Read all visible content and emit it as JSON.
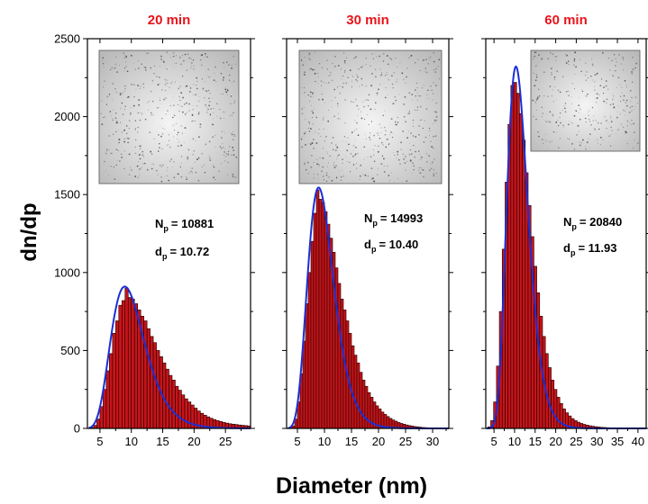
{
  "figure": {
    "ylabel": "dn/dp",
    "xlabel": "Diameter (nm)"
  },
  "colors": {
    "bar_fill": "#c8141a",
    "bar_stroke": "#1a0000",
    "fit_line": "#1c2fd6",
    "title": "#e8141b",
    "axis": "#000000"
  },
  "chart_data": [
    {
      "type": "bar",
      "title": "20 min",
      "inset_image": "TEM micrograph of particles",
      "annotation": {
        "np_label": "N",
        "np_sub": "p",
        "np_value": "= 10881",
        "dp_label": "d",
        "dp_sub": "p",
        "dp_value": "= 10.72"
      },
      "xlim": [
        3,
        29
      ],
      "ylim": [
        0,
        2500
      ],
      "xticks": [
        5,
        10,
        15,
        20,
        25
      ],
      "yticks": [
        0,
        500,
        1000,
        1500,
        2000,
        2500
      ],
      "bin_width": 0.5,
      "bins_start": 3.5,
      "values": [
        5,
        20,
        60,
        140,
        250,
        370,
        480,
        610,
        690,
        790,
        820,
        900,
        840,
        830,
        800,
        760,
        720,
        690,
        640,
        590,
        550,
        500,
        460,
        420,
        380,
        340,
        310,
        270,
        245,
        215,
        190,
        170,
        150,
        130,
        112,
        97,
        85,
        74,
        65,
        57,
        50,
        44,
        39,
        34,
        30,
        27,
        25,
        22,
        20,
        18,
        16,
        15
      ],
      "fit": {
        "mode": 9.8,
        "peak": 870,
        "sigma_log": 0.3
      }
    },
    {
      "type": "bar",
      "title": "30 min",
      "inset_image": "TEM micrograph of particles",
      "annotation": {
        "np_label": "N",
        "np_sub": "p",
        "np_value": "= 14993",
        "dp_label": "d",
        "dp_sub": "p",
        "dp_value": "= 10.40"
      },
      "xlim": [
        3,
        33
      ],
      "ylim": [
        0,
        2500
      ],
      "xticks": [
        5,
        10,
        15,
        20,
        25,
        30
      ],
      "yticks": [
        0,
        500,
        1000,
        1500,
        2000,
        2500
      ],
      "bin_width": 0.5,
      "bins_start": 3.5,
      "values": [
        3,
        15,
        60,
        170,
        350,
        560,
        800,
        1000,
        1200,
        1380,
        1530,
        1470,
        1450,
        1390,
        1310,
        1220,
        1130,
        1030,
        930,
        830,
        760,
        690,
        610,
        530,
        470,
        420,
        360,
        310,
        270,
        230,
        200,
        170,
        145,
        125,
        105,
        90,
        76,
        64,
        54,
        46,
        38,
        32,
        27,
        22,
        18,
        15,
        12,
        10,
        8,
        6,
        5,
        4,
        3,
        3,
        2,
        2,
        1,
        1,
        1,
        1
      ],
      "fit": {
        "mode": 9.6,
        "peak": 1490,
        "sigma_log": 0.27
      }
    },
    {
      "type": "bar",
      "title": "60 min",
      "inset_image": "TEM micrograph of particles",
      "annotation": {
        "np_label": "N",
        "np_sub": "p",
        "np_value": "= 20840",
        "dp_label": "d",
        "dp_sub": "p",
        "dp_value": "= 11.93"
      },
      "xlim": [
        3,
        42
      ],
      "ylim": [
        0,
        2500
      ],
      "xticks": [
        5,
        10,
        15,
        20,
        25,
        30,
        35,
        40
      ],
      "yticks": [
        0,
        500,
        1000,
        1500,
        2000,
        2500
      ],
      "bin_width": 0.7,
      "bins_start": 3.5,
      "values": [
        10,
        50,
        170,
        400,
        750,
        1150,
        1580,
        1950,
        2200,
        2220,
        2150,
        2020,
        1850,
        1640,
        1430,
        1230,
        1040,
        870,
        720,
        590,
        480,
        390,
        310,
        250,
        200,
        160,
        125,
        100,
        80,
        63,
        50,
        40,
        32,
        26,
        21,
        17,
        14,
        11,
        9,
        7,
        6,
        5,
        4,
        3,
        3,
        2,
        2,
        2,
        2,
        2,
        2,
        1,
        1,
        1,
        1
      ],
      "fit": {
        "mode": 11.0,
        "peak": 2250,
        "sigma_log": 0.25
      }
    }
  ]
}
